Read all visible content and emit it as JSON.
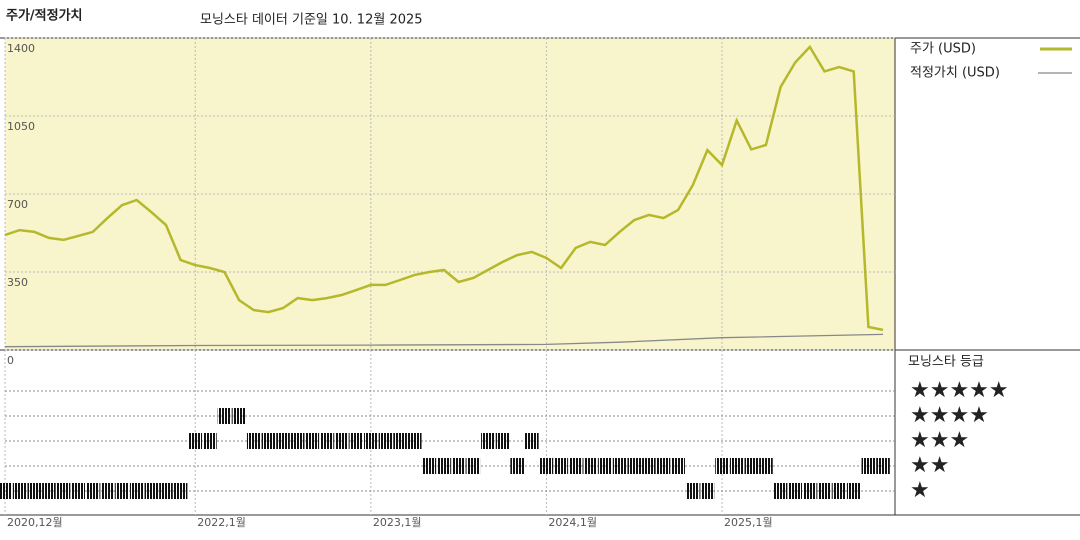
{
  "chart_data": {
    "type": "line",
    "title": "주가/적정가치",
    "subtitle": "모닝스타 데이터 기준일 10. 12월 2025",
    "xlim": [
      "2020-12",
      "2025-12"
    ],
    "xticks": [
      {
        "value": "2020-12",
        "label": "2020,12월"
      },
      {
        "value": "2022-01",
        "label": "2022,1월"
      },
      {
        "value": "2023-01",
        "label": "2023,1월"
      },
      {
        "value": "2024-01",
        "label": "2024,1월"
      },
      {
        "value": "2025-01",
        "label": "2025,1월"
      }
    ],
    "ylim": [
      0,
      1400
    ],
    "yticks": [
      0,
      350,
      700,
      1050,
      1400
    ],
    "grid": true,
    "series": [
      {
        "name": "주가 (USD)",
        "color": "#b5b82a",
        "x": [
          "2020-12",
          "2021-01",
          "2021-02",
          "2021-03",
          "2021-04",
          "2021-05",
          "2021-06",
          "2021-07",
          "2021-08",
          "2021-09",
          "2021-10",
          "2021-11",
          "2021-12",
          "2022-01",
          "2022-02",
          "2022-03",
          "2022-04",
          "2022-05",
          "2022-06",
          "2022-07",
          "2022-08",
          "2022-09",
          "2022-10",
          "2022-11",
          "2022-12",
          "2023-01",
          "2023-02",
          "2023-03",
          "2023-04",
          "2023-05",
          "2023-06",
          "2023-07",
          "2023-08",
          "2023-09",
          "2023-10",
          "2023-11",
          "2023-12",
          "2024-01",
          "2024-02",
          "2024-03",
          "2024-04",
          "2024-05",
          "2024-06",
          "2024-07",
          "2024-08",
          "2024-09",
          "2024-10",
          "2024-11",
          "2024-12",
          "2025-01",
          "2025-02",
          "2025-03",
          "2025-04",
          "2025-05",
          "2025-06",
          "2025-07",
          "2025-08",
          "2025-09",
          "2025-10",
          "2025-11",
          "2025-12"
        ],
        "values": [
          516,
          538,
          530,
          503,
          494,
          512,
          530,
          592,
          650,
          673,
          619,
          561,
          404,
          381,
          368,
          350,
          224,
          179,
          170,
          188,
          233,
          224,
          233,
          247,
          269,
          292,
          292,
          314,
          337,
          350,
          359,
          305,
          323,
          359,
          395,
          426,
          440,
          413,
          368,
          458,
          485,
          471,
          530,
          583,
          606,
          592,
          628,
          740,
          897,
          830,
          1030,
          900,
          920,
          1180,
          1290,
          1360,
          1250,
          1270,
          1250,
          103,
          90
        ]
      },
      {
        "name": "적정가치 (USD)",
        "color": "#888888",
        "x": [
          "2020-12",
          "2022-01",
          "2023-01",
          "2024-01",
          "2024-06",
          "2025-01",
          "2025-12"
        ],
        "values": [
          15,
          20,
          22,
          25,
          35,
          55,
          70
        ]
      }
    ],
    "rating_title": "모닝스타 등급",
    "rating_labels": [
      {
        "value": 5,
        "label": "★★★★★"
      },
      {
        "value": 4,
        "label": "★★★★"
      },
      {
        "value": 3,
        "label": "★★★"
      },
      {
        "value": 2,
        "label": "★★"
      },
      {
        "value": 1,
        "label": "★"
      }
    ],
    "ratings": [
      1,
      1,
      1,
      1,
      1,
      1,
      1,
      1,
      1,
      1,
      1,
      1,
      1,
      3,
      3,
      4,
      4,
      3,
      3,
      3,
      3,
      3,
      3,
      3,
      3,
      3,
      3,
      3,
      3,
      2,
      2,
      2,
      2,
      3,
      3,
      2,
      3,
      2,
      2,
      2,
      2,
      2,
      2,
      2,
      2,
      2,
      2,
      1,
      1,
      2,
      2,
      2,
      2,
      1,
      1,
      1,
      1,
      1,
      1,
      2,
      2
    ]
  }
}
